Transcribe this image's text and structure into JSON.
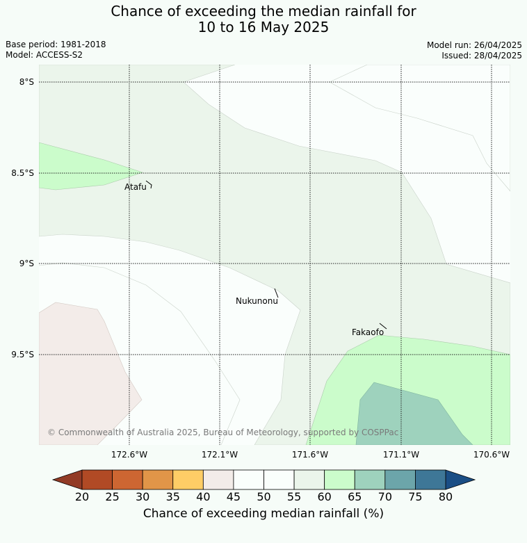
{
  "title_line1": "Chance of exceeding the median rainfall for",
  "title_line2": "10 to 16 May 2025",
  "base_period": "Base period: 1981-2018",
  "model": "Model: ACCESS-S2",
  "model_run": "Model run: 26/04/2025",
  "issued": "Issued: 28/04/2025",
  "copyright": "© Commonwealth of Australia 2025, Bureau of Meteorology, supported by COSPPac",
  "colorbar_label": "Chance of exceeding median rainfall (%)",
  "lat_labels": [
    "8°S",
    "8.5°S",
    "9°S",
    "9.5°S"
  ],
  "lon_labels": [
    "172.6°W",
    "172.1°W",
    "171.6°W",
    "171.1°W",
    "170.6°W"
  ],
  "places": [
    {
      "name": "Atafu"
    },
    {
      "name": "Nukunonu"
    },
    {
      "name": "Fakaofo"
    }
  ],
  "colorbar": {
    "ticks": [
      "20",
      "25",
      "30",
      "35",
      "40",
      "45",
      "50",
      "55",
      "60",
      "65",
      "70",
      "75",
      "80"
    ],
    "colors": [
      "#b14a25",
      "#cd6632",
      "#e19548",
      "#fecd66",
      "#f3ece9",
      "#fafefc",
      "#fafefc",
      "#ebf5eb",
      "#cbfccb",
      "#9ed2bd",
      "#6ca5aa",
      "#3e7797"
    ],
    "under_color": "#923b26",
    "over_color": "#1a4e85"
  },
  "legend_colors": {
    "40-45": "#f3ece9",
    "45-55": "#fafefc",
    "55-60": "#ebf5eb",
    "60-65": "#cbfccb",
    "65-70": "#9ed2bd"
  }
}
